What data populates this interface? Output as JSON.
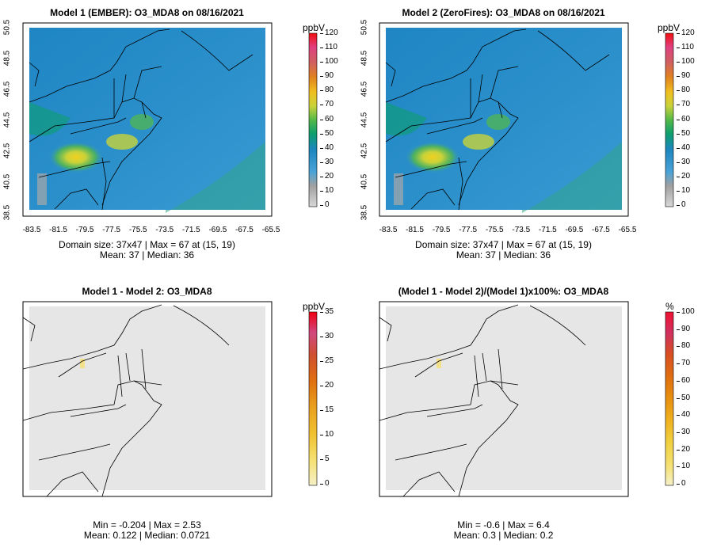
{
  "panels": [
    {
      "title": "Model 1 (EMBER): O3_MDA8 on 08/16/2021",
      "unit": "ppbV",
      "colorbar_labels": [
        "0",
        "10",
        "20",
        "30",
        "40",
        "50",
        "60",
        "70",
        "80",
        "90",
        "100",
        "110",
        "120"
      ],
      "x_ticks": [
        "-83.5",
        "-81.5",
        "-79.5",
        "-77.5",
        "-75.5",
        "-73.5",
        "-71.5",
        "-69.5",
        "-67.5",
        "-65.5"
      ],
      "y_ticks": [
        "38.5",
        "40.5",
        "42.5",
        "44.5",
        "46.5",
        "48.5",
        "50.5"
      ],
      "stats_line1": "Domain size: 37x47 | Max = 67 at (15, 19)",
      "stats_line2": "Mean: 37 |  Median: 36"
    },
    {
      "title": "Model 2 (ZeroFires): O3_MDA8 on 08/16/2021",
      "unit": "ppbV",
      "colorbar_labels": [
        "0",
        "10",
        "20",
        "30",
        "40",
        "50",
        "60",
        "70",
        "80",
        "90",
        "100",
        "110",
        "120"
      ],
      "x_ticks": [
        "-83.5",
        "-81.5",
        "-79.5",
        "-77.5",
        "-75.5",
        "-73.5",
        "-71.5",
        "-69.5",
        "-67.5",
        "-65.5"
      ],
      "y_ticks": [
        "38.5",
        "40.5",
        "42.5",
        "44.5",
        "46.5",
        "48.5",
        "50.5"
      ],
      "stats_line1": "Domain size: 37x47 | Max = 67 at (15, 19)",
      "stats_line2": "Mean: 37 |  Median: 36"
    },
    {
      "title": "Model 1 - Model 2: O3_MDA8",
      "unit": "ppbV",
      "colorbar_labels": [
        "0",
        "5",
        "10",
        "15",
        "20",
        "25",
        "30",
        "35"
      ],
      "stats_line1": "Min = -0.204 | Max = 2.53",
      "stats_line2": "Mean: 0.122 |  Median: 0.0721"
    },
    {
      "title": "(Model 1 - Model 2)/(Model 1)x100%: O3_MDA8",
      "unit": "%",
      "colorbar_labels": [
        "0",
        "10",
        "20",
        "30",
        "40",
        "50",
        "60",
        "70",
        "80",
        "90",
        "100"
      ],
      "stats_line1": "Min = -0.6 | Max = 6.4",
      "stats_line2": "Mean: 0.3 |  Median: 0.2"
    }
  ],
  "colors": {
    "ozone_scale": [
      "#d0d0d0",
      "#a8a8a8",
      "#4aa3d8",
      "#2f92cc",
      "#1c86bf",
      "#0e9f6e",
      "#54b948",
      "#c8d23a",
      "#f0d020",
      "#f0a020",
      "#e07020",
      "#d05080",
      "#f01010"
    ],
    "diff_scale": [
      "#f5f0c8",
      "#f5e070",
      "#f0c030",
      "#e8a020",
      "#e07010",
      "#d05030",
      "#d04880",
      "#f00010"
    ],
    "pct_scale": [
      "#f5f0c8",
      "#f5e070",
      "#f0d040",
      "#f0b020",
      "#e89010",
      "#e07010",
      "#d85020",
      "#d03060",
      "#e03070",
      "#f01030"
    ],
    "diff_background": "#e6e6e6"
  }
}
